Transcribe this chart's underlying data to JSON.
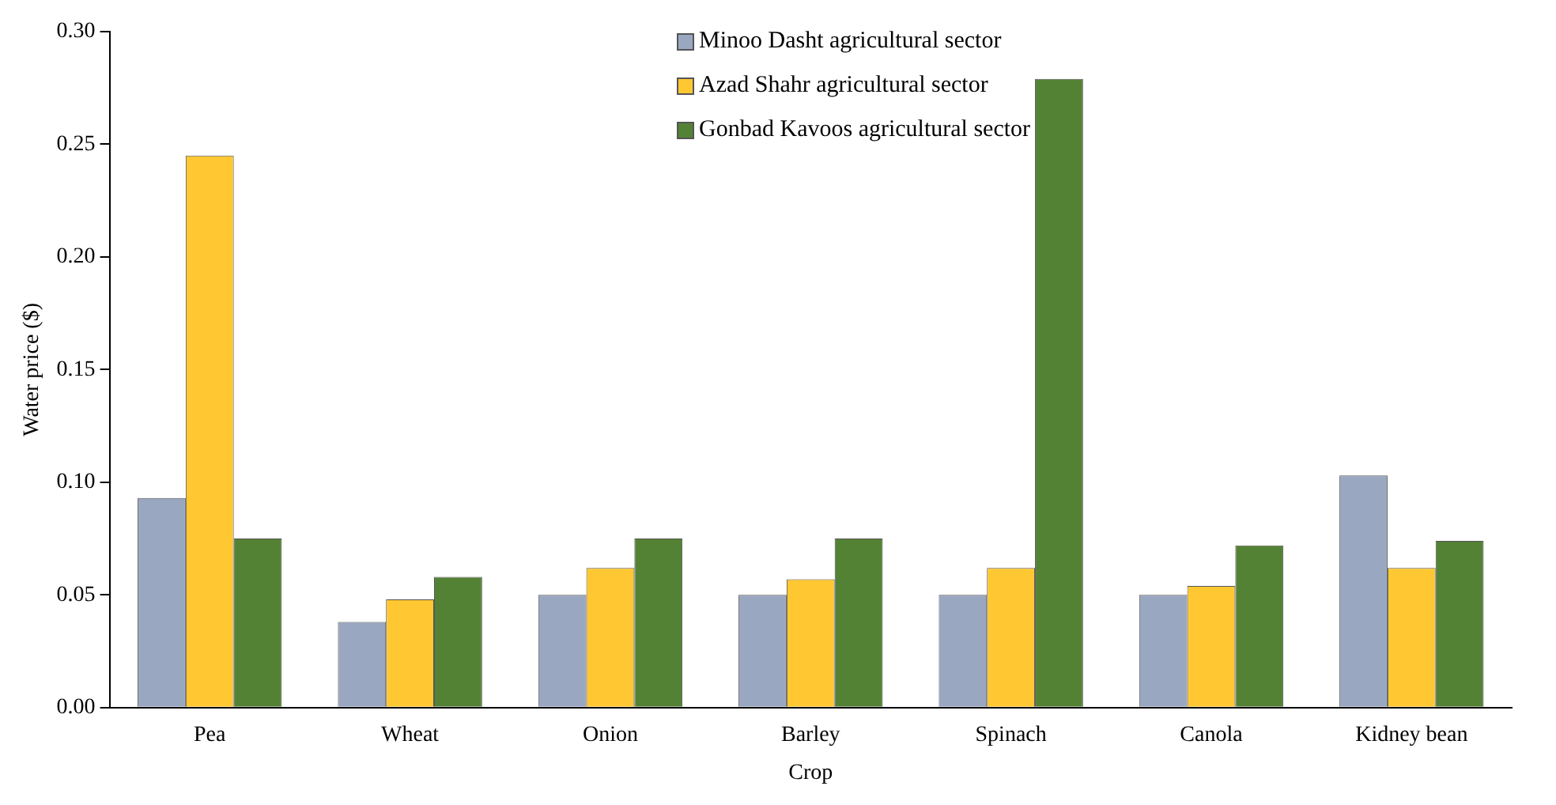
{
  "chart_data": {
    "type": "bar",
    "xlabel": "Crop",
    "ylabel": "Water price ($)",
    "categories": [
      "Pea",
      "Wheat",
      "Onion",
      "Barley",
      "Spinach",
      "Canola",
      "Kidney bean"
    ],
    "series": [
      {
        "name": "Minoo Dasht agricultural sector",
        "color": "#9aa7c0",
        "values": [
          0.093,
          0.038,
          0.05,
          0.05,
          0.05,
          0.05,
          0.103
        ]
      },
      {
        "name": "Azad Shahr agricultural sector",
        "color": "#ffc832",
        "values": [
          0.245,
          0.048,
          0.062,
          0.057,
          0.062,
          0.054,
          0.062
        ]
      },
      {
        "name": "Gonbad Kavoos agricultural sector",
        "color": "#548235",
        "values": [
          0.075,
          0.058,
          0.075,
          0.075,
          0.279,
          0.072,
          0.074
        ]
      }
    ],
    "ylim": [
      0,
      0.3
    ],
    "yticks": [
      {
        "value": 0,
        "label": "0.00"
      },
      {
        "value": 0.05,
        "label": "0.05"
      },
      {
        "value": 0.1,
        "label": "0.10"
      },
      {
        "value": 0.15,
        "label": "0.15"
      },
      {
        "value": 0.2,
        "label": "0.20"
      },
      {
        "value": 0.25,
        "label": "0.25"
      },
      {
        "value": 0.3,
        "label": "0.30"
      }
    ],
    "grid": false,
    "legend": "top"
  }
}
